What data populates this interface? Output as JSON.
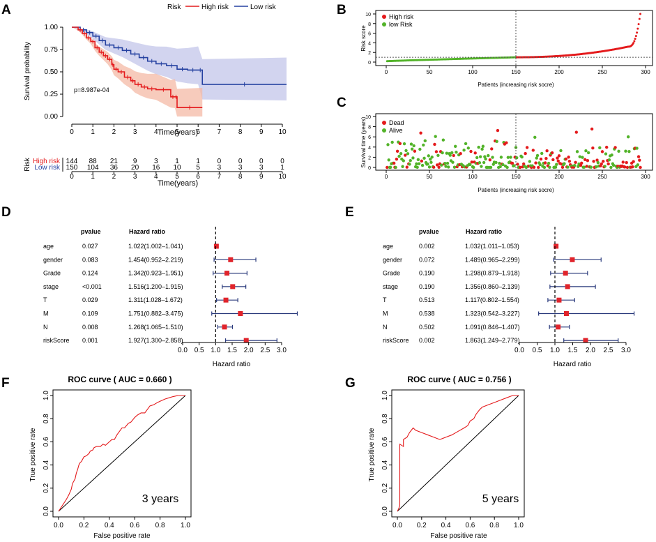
{
  "panel_labels": {
    "A": "A",
    "B": "B",
    "C": "C",
    "D": "D",
    "E": "E",
    "F": "F",
    "G": "G"
  },
  "colors": {
    "high": "#e41a1c",
    "low": "#2541a0",
    "high_fill": "#f4b9a6",
    "low_fill": "#c3c5ea",
    "alive": "#52b329",
    "forest_box": "#e0242b"
  },
  "chart_data": [
    {
      "id": "A",
      "type": "line",
      "title": "",
      "legend_title": "Risk",
      "legend": [
        "High risk",
        "Low risk"
      ],
      "xlabel": "Time(years)",
      "ylabel": "Survival probability",
      "xlim": [
        0,
        10
      ],
      "ylim": [
        0,
        1
      ],
      "xticks": [
        "0",
        "1",
        "2",
        "3",
        "4",
        "5",
        "6",
        "7",
        "8",
        "9",
        "10"
      ],
      "yticks": [
        "0.00",
        "0.25",
        "0.50",
        "0.75",
        "1.00"
      ],
      "annotation": "p=8.987e-04",
      "series": [
        {
          "name": "High risk",
          "x": [
            0,
            0.3,
            0.5,
            0.7,
            0.9,
            1.1,
            1.3,
            1.5,
            1.7,
            1.9,
            2.0,
            2.2,
            2.5,
            2.8,
            3.0,
            3.3,
            3.6,
            4.0,
            4.7,
            4.9,
            5.0,
            6.2
          ],
          "y": [
            1.0,
            0.97,
            0.93,
            0.88,
            0.84,
            0.77,
            0.72,
            0.68,
            0.64,
            0.58,
            0.53,
            0.5,
            0.44,
            0.4,
            0.36,
            0.33,
            0.31,
            0.3,
            0.22,
            0.22,
            0.1,
            0.1
          ]
        },
        {
          "name": "Low risk",
          "x": [
            0,
            0.4,
            0.7,
            1.0,
            1.3,
            1.6,
            2.0,
            2.4,
            2.8,
            3.2,
            3.6,
            4.0,
            4.5,
            5.0,
            5.5,
            6.0,
            6.2,
            10.2
          ],
          "y": [
            1.0,
            0.97,
            0.94,
            0.9,
            0.85,
            0.8,
            0.77,
            0.74,
            0.7,
            0.66,
            0.62,
            0.59,
            0.57,
            0.53,
            0.52,
            0.52,
            0.36,
            0.36
          ]
        }
      ],
      "risk_table": {
        "title": "Risk",
        "rows": [
          {
            "name": "High risk",
            "values": [
              "144",
              "88",
              "21",
              "9",
              "3",
              "1",
              "1",
              "0",
              "0",
              "0",
              "0"
            ]
          },
          {
            "name": "Low risk",
            "values": [
              "150",
              "104",
              "36",
              "20",
              "16",
              "10",
              "5",
              "3",
              "3",
              "3",
              "1"
            ]
          }
        ],
        "xticks": [
          "0",
          "1",
          "2",
          "3",
          "4",
          "5",
          "6",
          "7",
          "8",
          "9",
          "10"
        ],
        "xlabel": "Time(years)"
      }
    },
    {
      "id": "B",
      "type": "scatter",
      "xlabel": "Patients (increasing risk socre)",
      "ylabel": "Risk score",
      "xlim": [
        0,
        300
      ],
      "ylim": [
        0,
        10
      ],
      "xticks": [
        "0",
        "50",
        "100",
        "150",
        "200",
        "250",
        "300"
      ],
      "yticks": [
        "0",
        "2",
        "4",
        "6",
        "8",
        "10"
      ],
      "legend": [
        "High risk",
        "low Risk"
      ],
      "cutoff_index": 150,
      "cutoff_score": 1.0,
      "n_patients": 294
    },
    {
      "id": "C",
      "type": "scatter",
      "xlabel": "Patients (increasing risk socre)",
      "ylabel": "Survival time (years)",
      "xlim": [
        0,
        300
      ],
      "ylim": [
        0,
        10
      ],
      "xticks": [
        "0",
        "50",
        "100",
        "150",
        "200",
        "250",
        "300"
      ],
      "yticks": [
        "0",
        "2",
        "4",
        "6",
        "8",
        "10"
      ],
      "legend": [
        "Dead",
        "Alive"
      ],
      "cutoff_index": 150
    },
    {
      "id": "D",
      "type": "forest",
      "col_headers": [
        "pvalue",
        "Hazard ratio"
      ],
      "rows": [
        {
          "name": "age",
          "pvalue": "0.027",
          "hr_text": "1.022(1.002–1.041)",
          "hr": 1.022,
          "lo": 1.002,
          "hi": 1.041
        },
        {
          "name": "gender",
          "pvalue": "0.083",
          "hr_text": "1.454(0.952–2.219)",
          "hr": 1.454,
          "lo": 0.952,
          "hi": 2.219
        },
        {
          "name": "Grade",
          "pvalue": "0.124",
          "hr_text": "1.342(0.923–1.951)",
          "hr": 1.342,
          "lo": 0.923,
          "hi": 1.951
        },
        {
          "name": "stage",
          "pvalue": "<0.001",
          "hr_text": "1.516(1.200–1.915)",
          "hr": 1.516,
          "lo": 1.2,
          "hi": 1.915
        },
        {
          "name": "T",
          "pvalue": "0.029",
          "hr_text": "1.311(1.028–1.672)",
          "hr": 1.311,
          "lo": 1.028,
          "hi": 1.672
        },
        {
          "name": "M",
          "pvalue": "0.109",
          "hr_text": "1.751(0.882–3.475)",
          "hr": 1.751,
          "lo": 0.882,
          "hi": 3.475
        },
        {
          "name": "N",
          "pvalue": "0.008",
          "hr_text": "1.268(1.065–1.510)",
          "hr": 1.268,
          "lo": 1.065,
          "hi": 1.51
        },
        {
          "name": "riskScore",
          "pvalue": "0.001",
          "hr_text": "1.927(1.300–2.858)",
          "hr": 1.927,
          "lo": 1.3,
          "hi": 2.858
        }
      ],
      "xlim": [
        0,
        3
      ],
      "xticks": [
        "0.0",
        "0.5",
        "1.0",
        "1.5",
        "2.0",
        "2.5",
        "3.0"
      ],
      "xlabel": "Hazard ratio"
    },
    {
      "id": "E",
      "type": "forest",
      "col_headers": [
        "pvalue",
        "Hazard ratio"
      ],
      "rows": [
        {
          "name": "age",
          "pvalue": "0.002",
          "hr_text": "1.032(1.011–1.053)",
          "hr": 1.032,
          "lo": 1.011,
          "hi": 1.053
        },
        {
          "name": "gender",
          "pvalue": "0.072",
          "hr_text": "1.489(0.965–2.299)",
          "hr": 1.489,
          "lo": 0.965,
          "hi": 2.299
        },
        {
          "name": "Grade",
          "pvalue": "0.190",
          "hr_text": "1.298(0.879–1.918)",
          "hr": 1.298,
          "lo": 0.879,
          "hi": 1.918
        },
        {
          "name": "stage",
          "pvalue": "0.190",
          "hr_text": "1.356(0.860–2.139)",
          "hr": 1.356,
          "lo": 0.86,
          "hi": 2.139
        },
        {
          "name": "T",
          "pvalue": "0.513",
          "hr_text": "1.117(0.802–1.554)",
          "hr": 1.117,
          "lo": 0.802,
          "hi": 1.554
        },
        {
          "name": "M",
          "pvalue": "0.538",
          "hr_text": "1.323(0.542–3.227)",
          "hr": 1.323,
          "lo": 0.542,
          "hi": 3.227
        },
        {
          "name": "N",
          "pvalue": "0.502",
          "hr_text": "1.091(0.846–1.407)",
          "hr": 1.091,
          "lo": 0.846,
          "hi": 1.407
        },
        {
          "name": "riskScore",
          "pvalue": "0.002",
          "hr_text": "1.863(1.249–2.779)",
          "hr": 1.863,
          "lo": 1.249,
          "hi": 2.779
        }
      ],
      "xlim": [
        0,
        3
      ],
      "xticks": [
        "0.0",
        "0.5",
        "1.0",
        "1.5",
        "2.0",
        "2.5",
        "3.0"
      ],
      "xlabel": "Hazard ratio"
    },
    {
      "id": "F",
      "type": "line",
      "title": "ROC curve ( AUC =  0.660 )",
      "xlabel": "False positive rate",
      "ylabel": "True positive rate",
      "xlim": [
        0,
        1
      ],
      "ylim": [
        0,
        1
      ],
      "xticks": [
        "0.0",
        "0.2",
        "0.4",
        "0.6",
        "0.8",
        "1.0"
      ],
      "yticks": [
        "0.0",
        "0.2",
        "0.4",
        "0.6",
        "0.8",
        "1.0"
      ],
      "annotation": "3 years",
      "x": [
        0,
        0.03,
        0.06,
        0.08,
        0.1,
        0.11,
        0.13,
        0.14,
        0.15,
        0.16,
        0.17,
        0.18,
        0.19,
        0.2,
        0.22,
        0.24,
        0.25,
        0.27,
        0.28,
        0.3,
        0.33,
        0.35,
        0.37,
        0.4,
        0.42,
        0.44,
        0.46,
        0.48,
        0.5,
        0.52,
        0.55,
        0.57,
        0.6,
        0.62,
        0.65,
        0.68,
        0.7,
        0.72,
        0.75,
        0.78,
        0.8,
        0.84,
        0.87,
        0.9,
        0.94,
        1.0
      ],
      "y": [
        0,
        0.05,
        0.1,
        0.14,
        0.19,
        0.24,
        0.28,
        0.33,
        0.36,
        0.4,
        0.42,
        0.43,
        0.45,
        0.47,
        0.48,
        0.5,
        0.52,
        0.53,
        0.55,
        0.56,
        0.56,
        0.58,
        0.57,
        0.6,
        0.62,
        0.62,
        0.66,
        0.69,
        0.72,
        0.72,
        0.76,
        0.77,
        0.81,
        0.83,
        0.85,
        0.85,
        0.88,
        0.91,
        0.92,
        0.94,
        0.95,
        0.97,
        0.98,
        0.99,
        1.0,
        1.0
      ]
    },
    {
      "id": "G",
      "type": "line",
      "title": "ROC curve ( AUC =  0.756 )",
      "xlabel": "False positive rate",
      "ylabel": "True positive rate",
      "xlim": [
        0,
        1
      ],
      "ylim": [
        0,
        1
      ],
      "xticks": [
        "0.0",
        "0.2",
        "0.4",
        "0.6",
        "0.8",
        "1.0"
      ],
      "yticks": [
        "0.0",
        "0.2",
        "0.4",
        "0.6",
        "0.8",
        "1.0"
      ],
      "annotation": "5 years",
      "x": [
        0,
        0.01,
        0.02,
        0.02,
        0.05,
        0.05,
        0.08,
        0.1,
        0.13,
        0.15,
        0.2,
        0.25,
        0.3,
        0.35,
        0.4,
        0.45,
        0.5,
        0.55,
        0.58,
        0.6,
        0.63,
        0.65,
        0.68,
        0.7,
        0.75,
        0.8,
        0.85,
        0.9,
        0.95,
        1.0
      ],
      "y": [
        0,
        0.02,
        0.05,
        0.58,
        0.56,
        0.62,
        0.64,
        0.68,
        0.72,
        0.7,
        0.68,
        0.66,
        0.64,
        0.62,
        0.64,
        0.66,
        0.69,
        0.72,
        0.74,
        0.78,
        0.8,
        0.84,
        0.88,
        0.9,
        0.92,
        0.94,
        0.96,
        0.98,
        1.0,
        1.0
      ]
    }
  ]
}
